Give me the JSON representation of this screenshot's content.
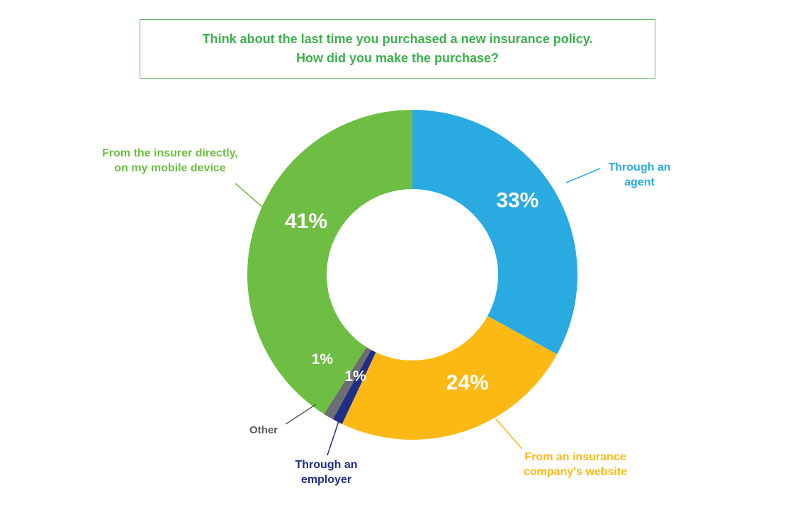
{
  "title": {
    "line1": "Think about the last time you purchased a new insurance policy.",
    "line2": "How did you make the purchase?"
  },
  "theme": {
    "background": "#ffffff",
    "title_color": "#3bb04c",
    "title_border_color": "#63bb63",
    "percent_label_color": "#ffffff"
  },
  "chart_data": {
    "type": "pie",
    "subtype": "donut",
    "title": "Think about the last time you purchased a new insurance policy. How did you make the purchase?",
    "legend_position": "outside-callouts",
    "units": "percent",
    "total": 100,
    "slices": [
      {
        "label": "Through an\nagent",
        "value": 33,
        "percent_label": "33%",
        "color": "#29abe2"
      },
      {
        "label": "From an insurance\ncompany's website",
        "value": 24,
        "percent_label": "24%",
        "color": "#fdb913"
      },
      {
        "label": "Through an\nemployer",
        "value": 1,
        "percent_label": "1%",
        "color": "#1f2e86"
      },
      {
        "label": "Other",
        "value": 1,
        "percent_label": "1%",
        "color": "#6d6e71",
        "label_color": "#58595b"
      },
      {
        "label": "From the insurer directly,\non my mobile device",
        "value": 41,
        "percent_label": "41%",
        "color": "#6fbe44"
      }
    ]
  }
}
